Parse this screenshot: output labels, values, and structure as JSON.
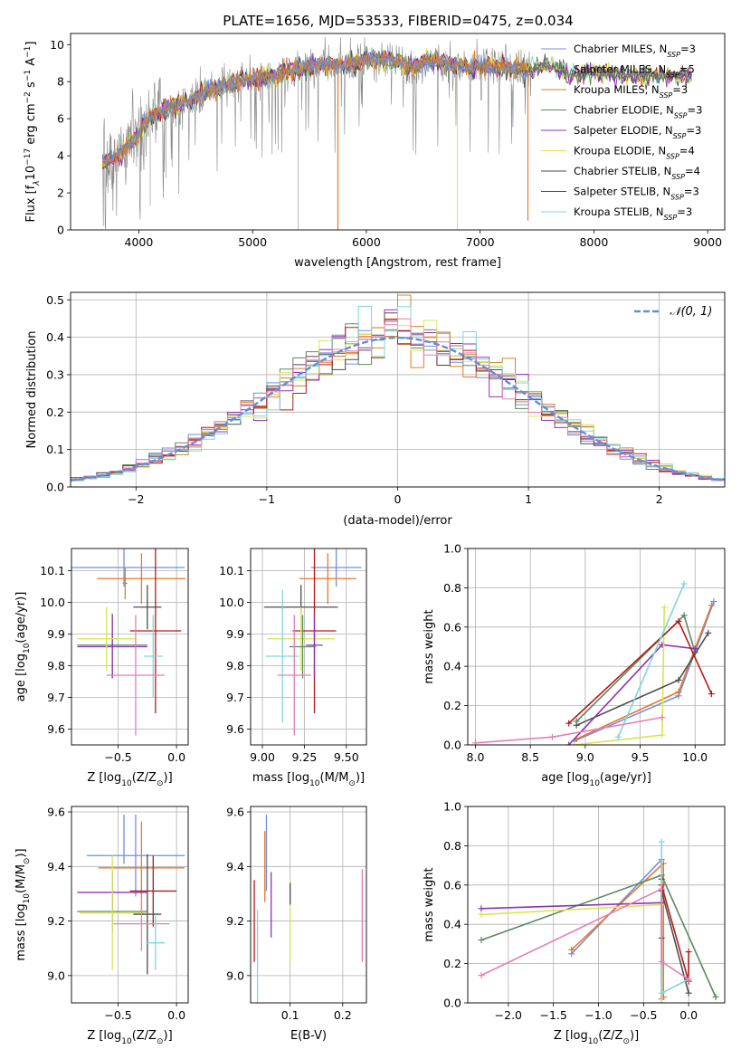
{
  "colors": {
    "Chabrier MILES": "#6f8fdf",
    "Salpeter MILES": "#e9772c",
    "Kroupa MILES": "#c98a2a",
    "Chabrier ELODIE": "#5c8a5f",
    "Salpeter ELODIE": "#9130b5",
    "Kroupa ELODIE": "#d9e552",
    "Chabrier STELIB": "#4d4d4d",
    "Salpeter STELIB": "#b51a1a",
    "Kroupa STELIB": "#7fd6dc",
    "pink": "#e67fb3",
    "spectrum": "#888888",
    "gauss": "#5f8fdb",
    "grid": "#b0b0b0"
  },
  "chart_data": [
    {
      "id": "spectrum",
      "type": "line",
      "title": "PLATE=1656, MJD=53533, FIBERID=0475, z=0.034",
      "xlabel": "wavelength [Angstrom, rest frame]",
      "ylabel": "Flux [f",
      "ylabel_sub": "λ",
      "ylabel_rest": "10",
      "ylabel_exp1": "−17",
      "ylabel_mid": " erg cm",
      "ylabel_exp2": "−2",
      "ylabel_mid2": " s",
      "ylabel_exp3": "−1",
      "ylabel_end": " A",
      "ylabel_exp4": "−1",
      "ylabel_close": "]",
      "xlim": [
        3400,
        9150
      ],
      "ylim": [
        0,
        10.6
      ],
      "xticks": [
        4000,
        5000,
        6000,
        7000,
        8000,
        9000
      ],
      "yticks": [
        0,
        2,
        4,
        6,
        8,
        10
      ],
      "grid": false,
      "legend_position": "top-right",
      "continuum": [
        [
          3680,
          3.6
        ],
        [
          3750,
          3.8
        ],
        [
          3850,
          4.2
        ],
        [
          3950,
          4.8
        ],
        [
          4050,
          5.8
        ],
        [
          4150,
          6.3
        ],
        [
          4300,
          6.6
        ],
        [
          4450,
          7.0
        ],
        [
          4600,
          7.5
        ],
        [
          4800,
          7.9
        ],
        [
          5000,
          8.2
        ],
        [
          5200,
          8.3
        ],
        [
          5400,
          8.7
        ],
        [
          5600,
          8.9
        ],
        [
          5800,
          8.9
        ],
        [
          6000,
          9.2
        ],
        [
          6200,
          9.2
        ],
        [
          6400,
          8.8
        ],
        [
          6600,
          9.2
        ],
        [
          6800,
          8.8
        ],
        [
          7000,
          8.8
        ],
        [
          7200,
          8.8
        ],
        [
          7400,
          8.6
        ],
        [
          7600,
          8.9
        ],
        [
          7800,
          8.4
        ],
        [
          8000,
          8.5
        ],
        [
          8200,
          8.4
        ],
        [
          8400,
          8.3
        ],
        [
          8600,
          8.3
        ],
        [
          8800,
          8.3
        ],
        [
          8860,
          8.3
        ]
      ],
      "series": [
        {
          "name": "Chabrier MILES",
          "n_ssp": "3"
        },
        {
          "name": "Salpeter MILES",
          "n_ssp": "5"
        },
        {
          "name": "Kroupa MILES",
          "n_ssp": "3"
        },
        {
          "name": "Chabrier ELODIE",
          "n_ssp": "3"
        },
        {
          "name": "Salpeter ELODIE",
          "n_ssp": "3"
        },
        {
          "name": "Kroupa ELODIE",
          "n_ssp": "4"
        },
        {
          "name": "Chabrier STELIB",
          "n_ssp": "4"
        },
        {
          "name": "Salpeter STELIB",
          "n_ssp": "3"
        },
        {
          "name": "Kroupa STELIB",
          "n_ssp": "3"
        }
      ],
      "legend_sub": "SSP"
    },
    {
      "id": "residuals",
      "type": "histogram",
      "xlabel": "(data-model)/error",
      "ylabel": "Normed distribution",
      "xlim": [
        -2.5,
        2.5
      ],
      "ylim": [
        0,
        0.52
      ],
      "xticks": [
        -2,
        -1,
        0,
        1,
        2
      ],
      "xtick_labels": [
        "−2",
        "−1",
        "0",
        "1",
        "2"
      ],
      "yticks": [
        0.0,
        0.1,
        0.2,
        0.3,
        0.4,
        0.5
      ],
      "ytick_labels": [
        "0.0",
        "0.1",
        "0.2",
        "0.3",
        "0.4",
        "0.5"
      ],
      "grid": true,
      "legend_position": "top-right",
      "gauss_label": "𝒩(0, 1)",
      "bin_width": 0.1
    },
    {
      "id": "age_vs_z",
      "type": "errorbar",
      "xlabel": "Z [log",
      "xlabel_sub": "10",
      "xlabel_end": "(Z/Z",
      "xlabel_sun": "⊙",
      "xlabel_close": ")]",
      "ylabel": "age  [log",
      "ylabel_sub": "10",
      "ylabel_end": "(age/yr)]",
      "xlim": [
        -0.9,
        0.1
      ],
      "ylim": [
        9.55,
        10.17
      ],
      "xticks": [
        -0.5,
        0.0
      ],
      "xtick_labels": [
        "−0.5",
        "0.0"
      ],
      "yticks": [
        9.6,
        9.7,
        9.8,
        9.9,
        10.0,
        10.1
      ],
      "ytick_labels": [
        "9.6",
        "9.7",
        "9.8",
        "9.9",
        "10.0",
        "10.1"
      ],
      "grid": true,
      "points": [
        {
          "series": "Chabrier MILES",
          "x": -0.45,
          "xerr": 0.52,
          "y": 10.11,
          "yerr": 0.06
        },
        {
          "series": "Salpeter MILES",
          "x": -0.3,
          "xerr": 0.38,
          "y": 10.075,
          "yerr": 0.08
        },
        {
          "series": "Chabrier ELODIE",
          "x": -0.55,
          "xerr": 0.3,
          "y": 9.865,
          "yerr": 0.1
        },
        {
          "series": "Salpeter ELODIE",
          "x": -0.55,
          "xerr": 0.3,
          "y": 9.86,
          "yerr": 0.1
        },
        {
          "series": "Kroupa ELODIE",
          "x": -0.6,
          "xerr": 0.25,
          "y": 9.885,
          "yerr": 0.1
        },
        {
          "series": "Chabrier STELIB",
          "x": -0.25,
          "xerr": 0.12,
          "y": 9.985,
          "yerr": 0.07
        },
        {
          "series": "Salpeter STELIB",
          "x": -0.18,
          "xerr": 0.22,
          "y": 9.91,
          "yerr": 0.26
        },
        {
          "series": "Kroupa STELIB",
          "x": -0.2,
          "xerr": 0.08,
          "y": 9.83,
          "yerr": 0.13
        },
        {
          "series": "pink",
          "x": -0.35,
          "xerr": 0.25,
          "y": 9.77,
          "yerr": 0.19
        },
        {
          "series": "Kroupa MILES",
          "x": -0.44,
          "xerr": 0.02,
          "y": 10.06,
          "yerr": 0.05
        }
      ]
    },
    {
      "id": "age_vs_mass",
      "type": "errorbar",
      "xlabel": "mass [log",
      "xlabel_sub": "10",
      "xlabel_end": "(M/M",
      "xlabel_sun": "⊙",
      "xlabel_close": ")]",
      "xlim": [
        8.93,
        9.62
      ],
      "ylim": [
        9.55,
        10.17
      ],
      "xticks": [
        9.0,
        9.25,
        9.5
      ],
      "xtick_labels": [
        "9.00",
        "9.25",
        "9.50"
      ],
      "yticks": [
        9.6,
        9.7,
        9.8,
        9.9,
        10.0,
        10.1
      ],
      "ytick_labels": [
        "9.6",
        "9.7",
        "9.8",
        "9.9",
        "10.0",
        "10.1"
      ],
      "grid": true,
      "points": [
        {
          "series": "Chabrier MILES",
          "x": 9.44,
          "xerr": 0.15,
          "y": 10.11,
          "yerr": 0.06
        },
        {
          "series": "Salpeter MILES",
          "x": 9.39,
          "xerr": 0.17,
          "y": 10.075,
          "yerr": 0.08
        },
        {
          "series": "Chabrier STELIB",
          "x": 9.23,
          "xerr": 0.22,
          "y": 9.985,
          "yerr": 0.07
        },
        {
          "series": "Salpeter STELIB",
          "x": 9.31,
          "xerr": 0.13,
          "y": 9.91,
          "yerr": 0.26
        },
        {
          "series": "Kroupa ELODIE",
          "x": 9.23,
          "xerr": 0.2,
          "y": 9.885,
          "yerr": 0.1
        },
        {
          "series": "Salpeter ELODIE",
          "x": 9.31,
          "xerr": 0.05,
          "y": 9.865,
          "yerr": 0.1
        },
        {
          "series": "Chabrier ELODIE",
          "x": 9.24,
          "xerr": 0.08,
          "y": 9.86,
          "yerr": 0.1
        },
        {
          "series": "Kroupa STELIB",
          "x": 9.12,
          "xerr": 0.1,
          "y": 9.83,
          "yerr": 0.21
        },
        {
          "series": "pink",
          "x": 9.19,
          "xerr": 0.1,
          "y": 9.77,
          "yerr": 0.19
        }
      ]
    },
    {
      "id": "massweight_vs_age",
      "type": "line",
      "xlabel": "age  [log",
      "xlabel_sub": "10",
      "xlabel_end": "(age/yr)]",
      "ylabel": "mass weight",
      "xlim": [
        7.93,
        10.27
      ],
      "ylim": [
        0,
        1.0
      ],
      "xticks": [
        8.0,
        8.5,
        9.0,
        9.5,
        10.0
      ],
      "xtick_labels": [
        "8.0",
        "8.5",
        "9.0",
        "9.5",
        "10.0"
      ],
      "yticks": [
        0.0,
        0.2,
        0.4,
        0.6,
        0.8,
        1.0
      ],
      "ytick_labels": [
        "0.0",
        "0.2",
        "0.4",
        "0.6",
        "0.8",
        "1.0"
      ],
      "grid": true,
      "series": [
        {
          "name": "Chabrier MILES",
          "x": [
            8.9,
            9.85,
            10.17
          ],
          "y": [
            0.02,
            0.25,
            0.73
          ]
        },
        {
          "name": "Salpeter MILES",
          "x": [
            8.92,
            9.85,
            10.15
          ],
          "y": [
            0.03,
            0.27,
            0.71
          ]
        },
        {
          "name": "Chabrier ELODIE",
          "x": [
            8.92,
            9.9,
            10.0
          ],
          "y": [
            0.12,
            0.66,
            0.47
          ]
        },
        {
          "name": "Salpeter ELODIE",
          "x": [
            8.85,
            9.7,
            10.0
          ],
          "y": [
            0.0,
            0.51,
            0.49
          ]
        },
        {
          "name": "Kroupa ELODIE",
          "x": [
            8.9,
            9.7,
            9.72
          ],
          "y": [
            0.0,
            0.05,
            0.7
          ]
        },
        {
          "name": "Chabrier STELIB",
          "x": [
            8.92,
            9.85,
            10.12
          ],
          "y": [
            0.1,
            0.33,
            0.57
          ]
        },
        {
          "name": "Salpeter STELIB",
          "x": [
            8.85,
            9.85,
            10.15
          ],
          "y": [
            0.11,
            0.63,
            0.26
          ]
        },
        {
          "name": "Kroupa STELIB",
          "x": [
            9.3,
            9.9
          ],
          "y": [
            0.04,
            0.82
          ]
        },
        {
          "name": "pink",
          "x": [
            8.0,
            8.7,
            9.7
          ],
          "y": [
            0.01,
            0.04,
            0.14
          ]
        }
      ]
    },
    {
      "id": "mass_vs_z",
      "type": "errorbar",
      "xlabel": "Z [log",
      "xlabel_sub": "10",
      "xlabel_end": "(Z/Z",
      "xlabel_sun": "⊙",
      "xlabel_close": ")]",
      "ylabel": "mass [log",
      "ylabel_sub": "10",
      "ylabel_end": "(M/M",
      "ylabel_sun": "⊙",
      "ylabel_close": ")]",
      "xlim": [
        -0.9,
        0.1
      ],
      "ylim": [
        8.9,
        9.62
      ],
      "xticks": [
        -0.5,
        0.0
      ],
      "xtick_labels": [
        "−0.5",
        "0.0"
      ],
      "yticks": [
        9.0,
        9.2,
        9.4,
        9.6
      ],
      "ytick_labels": [
        "9.0",
        "9.2",
        "9.4",
        "9.6"
      ],
      "grid": true,
      "points": [
        {
          "series": "Chabrier MILES",
          "x": -0.35,
          "xerr": 0.42,
          "y": 9.44,
          "yerr": 0.15
        },
        {
          "series": "Salpeter MILES",
          "x": -0.3,
          "xerr": 0.37,
          "y": 9.395,
          "yerr": 0.17
        },
        {
          "series": "Salpeter ELODIE",
          "x": -0.55,
          "xerr": 0.3,
          "y": 9.305,
          "yerr": 0.08
        },
        {
          "series": "Salpeter STELIB",
          "x": -0.2,
          "xerr": 0.2,
          "y": 9.31,
          "yerr": 0.13
        },
        {
          "series": "Chabrier ELODIE",
          "x": -0.55,
          "xerr": 0.3,
          "y": 9.235,
          "yerr": 0.08
        },
        {
          "series": "Kroupa ELODIE",
          "x": -0.55,
          "xerr": 0.28,
          "y": 9.23,
          "yerr": 0.21
        },
        {
          "series": "Chabrier STELIB",
          "x": -0.25,
          "xerr": 0.12,
          "y": 9.225,
          "yerr": 0.22
        },
        {
          "series": "pink",
          "x": -0.3,
          "xerr": 0.24,
          "y": 9.19,
          "yerr": 0.1
        },
        {
          "series": "Kroupa STELIB",
          "x": -0.18,
          "xerr": 0.08,
          "y": 9.12,
          "yerr": 0.1
        },
        {
          "series": "Chabrier MILES",
          "x": -0.45,
          "xerr": 0.0,
          "y": 9.5,
          "yerr": 0.09
        }
      ]
    },
    {
      "id": "mass_vs_ebv",
      "type": "errorbar",
      "xlabel": "E(B-V)",
      "xlim": [
        0.025,
        0.245
      ],
      "ylim": [
        8.9,
        9.62
      ],
      "xticks": [
        0.1,
        0.2
      ],
      "xtick_labels": [
        "0.1",
        "0.2"
      ],
      "yticks": [
        9.0,
        9.2,
        9.4,
        9.6
      ],
      "ytick_labels": [
        "9.0",
        "9.2",
        "9.4",
        "9.6"
      ],
      "grid": true,
      "points": [
        {
          "series": "Salpeter STELIB",
          "x": 0.032,
          "y": 9.2,
          "yerr": 0.15
        },
        {
          "series": "Kroupa STELIB",
          "x": 0.038,
          "y": 9.04,
          "yerr": 0.2
        },
        {
          "series": "Chabrier MILES",
          "x": 0.055,
          "y": 9.45,
          "yerr": 0.14
        },
        {
          "series": "Salpeter MILES",
          "x": 0.052,
          "y": 9.4,
          "yerr": 0.13
        },
        {
          "series": "Salpeter ELODIE",
          "x": 0.064,
          "y": 9.26,
          "yerr": 0.12
        },
        {
          "series": "Kroupa ELODIE",
          "x": 0.1,
          "y": 9.2,
          "yerr": 0.15
        },
        {
          "series": "Chabrier STELIB",
          "x": 0.1,
          "y": 9.3,
          "yerr": 0.04
        },
        {
          "series": "pink",
          "x": 0.237,
          "y": 9.22,
          "yerr": 0.17
        }
      ]
    },
    {
      "id": "massweight_vs_z",
      "type": "line",
      "xlabel": "Z [log",
      "xlabel_sub": "10",
      "xlabel_end": "(Z/Z",
      "xlabel_sun": "⊙",
      "xlabel_close": ")]",
      "ylabel": "mass weight",
      "xlim": [
        -2.45,
        0.4
      ],
      "ylim": [
        0,
        1.0
      ],
      "xticks": [
        -2.0,
        -1.5,
        -1.0,
        -0.5,
        0.0
      ],
      "xtick_labels": [
        "−2.0",
        "−1.5",
        "−1.0",
        "−0.5",
        "0.0"
      ],
      "yticks": [
        0.0,
        0.2,
        0.4,
        0.6,
        0.8,
        1.0
      ],
      "ytick_labels": [
        "0.0",
        "0.2",
        "0.4",
        "0.6",
        "0.8",
        "1.0"
      ],
      "grid": true,
      "series": [
        {
          "name": "Chabrier MILES",
          "x": [
            -1.3,
            -0.3,
            -0.3
          ],
          "y": [
            0.25,
            0.73,
            0.02
          ]
        },
        {
          "name": "Salpeter MILES",
          "x": [
            -1.3,
            -0.28,
            -0.28
          ],
          "y": [
            0.27,
            0.71,
            0.03
          ]
        },
        {
          "name": "Chabrier ELODIE",
          "x": [
            -2.3,
            -0.3,
            0.3
          ],
          "y": [
            0.32,
            0.65,
            0.03
          ]
        },
        {
          "name": "Salpeter ELODIE",
          "x": [
            -2.3,
            -0.3,
            -0.3
          ],
          "y": [
            0.48,
            0.51,
            0.0
          ]
        },
        {
          "name": "Kroupa ELODIE",
          "x": [
            -2.3,
            -0.3,
            -0.3
          ],
          "y": [
            0.45,
            0.5,
            0.0
          ]
        },
        {
          "name": "Chabrier STELIB",
          "x": [
            -0.3,
            -0.3,
            0.0
          ],
          "y": [
            0.33,
            0.57,
            0.05
          ]
        },
        {
          "name": "Salpeter STELIB",
          "x": [
            -0.3,
            -0.3,
            0.0,
            0.0
          ],
          "y": [
            0.63,
            0.6,
            0.11,
            0.26
          ]
        },
        {
          "name": "Kroupa STELIB",
          "x": [
            -0.3,
            -0.3,
            0.0
          ],
          "y": [
            0.82,
            0.05,
            0.12
          ]
        },
        {
          "name": "pink",
          "x": [
            -2.3,
            -0.3,
            -0.3,
            0.0
          ],
          "y": [
            0.14,
            0.58,
            0.21,
            0.12
          ]
        }
      ]
    }
  ]
}
